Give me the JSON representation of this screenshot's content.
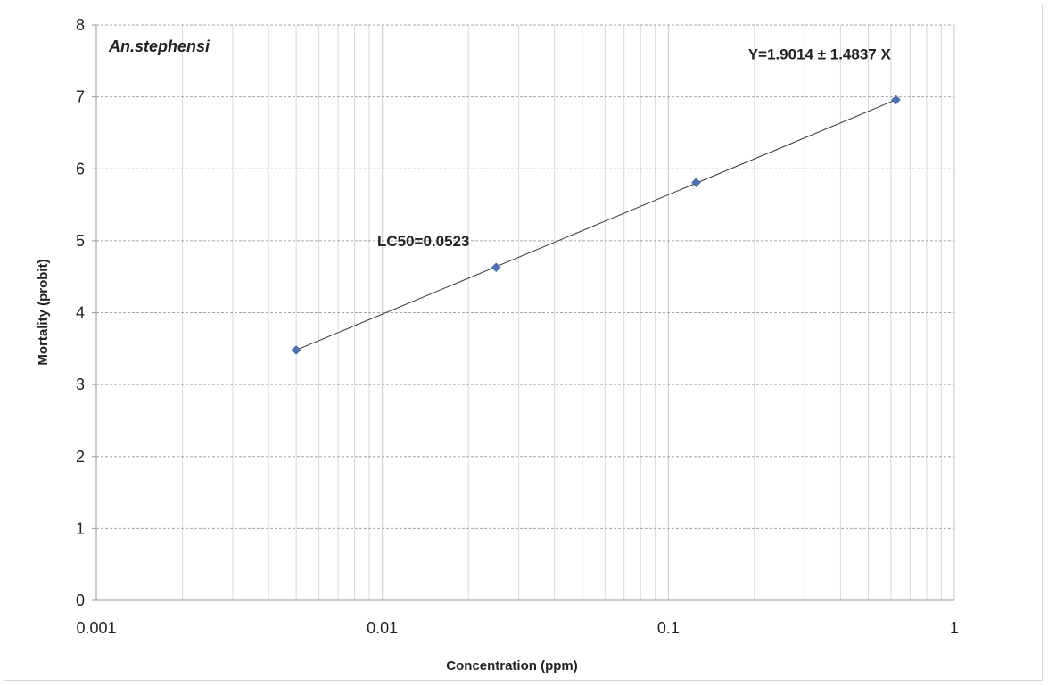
{
  "chart_data": {
    "type": "scatter",
    "title": "An.stephensi",
    "xlabel": "Concentration (ppm)",
    "ylabel": "Mortality (probit)",
    "x_scale": "log",
    "xlim": [
      0.001,
      1
    ],
    "ylim": [
      0,
      8
    ],
    "x_ticks": [
      {
        "value": 0.001,
        "label": "0.001"
      },
      {
        "value": 0.01,
        "label": "0.01"
      },
      {
        "value": 0.1,
        "label": "0.1"
      },
      {
        "value": 1,
        "label": "1"
      }
    ],
    "y_ticks": [
      {
        "value": 0,
        "label": "0"
      },
      {
        "value": 1,
        "label": "1"
      },
      {
        "value": 2,
        "label": "2"
      },
      {
        "value": 3,
        "label": "3"
      },
      {
        "value": 4,
        "label": "4"
      },
      {
        "value": 5,
        "label": "5"
      },
      {
        "value": 6,
        "label": "6"
      },
      {
        "value": 7,
        "label": "7"
      },
      {
        "value": 8,
        "label": "8"
      }
    ],
    "grid": true,
    "series": [
      {
        "points": [
          {
            "x": 0.005,
            "y": 3.48
          },
          {
            "x": 0.025,
            "y": 4.63
          },
          {
            "x": 0.125,
            "y": 5.81
          },
          {
            "x": 0.625,
            "y": 6.96
          }
        ],
        "marker": "diamond",
        "color": "#4a73b0"
      }
    ],
    "trendline": {
      "from": {
        "x": 0.005,
        "y": 3.48
      },
      "to": {
        "x": 0.625,
        "y": 6.96
      },
      "color": "#333333"
    },
    "annotations": [
      {
        "text": "Y=1.9014 ± 1.4837 X",
        "x": 0.19,
        "y": 7.5
      },
      {
        "text": "LC50=0.0523",
        "x": 0.0096,
        "y": 4.9
      }
    ]
  }
}
